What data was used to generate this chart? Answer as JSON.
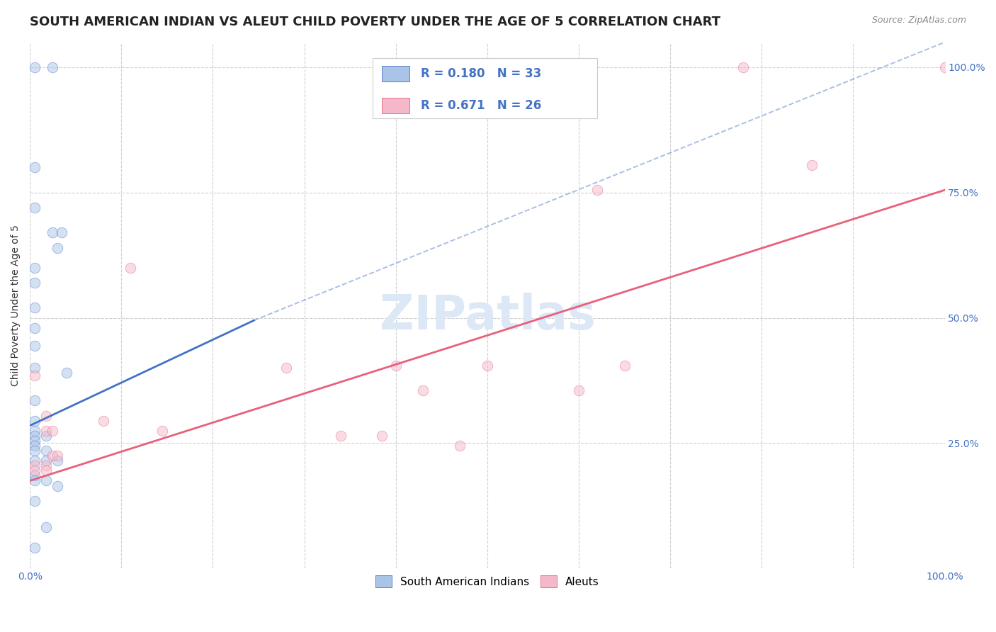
{
  "title": "SOUTH AMERICAN INDIAN VS ALEUT CHILD POVERTY UNDER THE AGE OF 5 CORRELATION CHART",
  "source": "Source: ZipAtlas.com",
  "ylabel": "Child Poverty Under the Age of 5",
  "watermark": "ZIPatlas",
  "legend_label1": "South American Indians",
  "legend_label2": "Aleuts",
  "r1": "0.180",
  "n1": "33",
  "r2": "0.671",
  "n2": "26",
  "color_blue": "#aac4e8",
  "color_pink": "#f5b8cb",
  "line_blue": "#4472c4",
  "line_pink": "#e8607a",
  "blue_points": [
    [
      0.005,
      1.0
    ],
    [
      0.025,
      1.0
    ],
    [
      0.005,
      0.8
    ],
    [
      0.005,
      0.72
    ],
    [
      0.025,
      0.67
    ],
    [
      0.035,
      0.67
    ],
    [
      0.03,
      0.64
    ],
    [
      0.005,
      0.6
    ],
    [
      0.005,
      0.57
    ],
    [
      0.005,
      0.52
    ],
    [
      0.005,
      0.48
    ],
    [
      0.005,
      0.445
    ],
    [
      0.005,
      0.4
    ],
    [
      0.04,
      0.39
    ],
    [
      0.005,
      0.335
    ],
    [
      0.005,
      0.295
    ],
    [
      0.005,
      0.275
    ],
    [
      0.005,
      0.265
    ],
    [
      0.018,
      0.265
    ],
    [
      0.005,
      0.255
    ],
    [
      0.005,
      0.245
    ],
    [
      0.005,
      0.235
    ],
    [
      0.018,
      0.235
    ],
    [
      0.005,
      0.215
    ],
    [
      0.018,
      0.215
    ],
    [
      0.03,
      0.215
    ],
    [
      0.005,
      0.185
    ],
    [
      0.005,
      0.175
    ],
    [
      0.018,
      0.175
    ],
    [
      0.03,
      0.165
    ],
    [
      0.005,
      0.135
    ],
    [
      0.018,
      0.082
    ],
    [
      0.005,
      0.042
    ]
  ],
  "pink_points": [
    [
      0.005,
      0.385
    ],
    [
      0.018,
      0.305
    ],
    [
      0.018,
      0.275
    ],
    [
      0.025,
      0.275
    ],
    [
      0.025,
      0.225
    ],
    [
      0.03,
      0.225
    ],
    [
      0.005,
      0.205
    ],
    [
      0.018,
      0.205
    ],
    [
      0.005,
      0.195
    ],
    [
      0.018,
      0.195
    ],
    [
      0.08,
      0.295
    ],
    [
      0.11,
      0.6
    ],
    [
      0.145,
      0.275
    ],
    [
      0.28,
      0.4
    ],
    [
      0.34,
      0.265
    ],
    [
      0.385,
      0.265
    ],
    [
      0.4,
      0.405
    ],
    [
      0.43,
      0.355
    ],
    [
      0.47,
      0.245
    ],
    [
      0.5,
      0.405
    ],
    [
      0.6,
      0.355
    ],
    [
      0.62,
      0.755
    ],
    [
      0.65,
      0.405
    ],
    [
      0.78,
      1.0
    ],
    [
      0.855,
      0.805
    ],
    [
      1.0,
      1.0
    ]
  ],
  "blue_solid_line": [
    [
      0.0,
      0.285
    ],
    [
      0.245,
      0.495
    ]
  ],
  "blue_dashed_line": [
    [
      0.245,
      0.495
    ],
    [
      1.0,
      1.05
    ]
  ],
  "pink_line": [
    [
      0.0,
      0.175
    ],
    [
      1.0,
      0.755
    ]
  ],
  "xlim": [
    0.0,
    1.0
  ],
  "ylim": [
    0.0,
    1.05
  ],
  "grid_color": "#d0d0d0",
  "background_color": "#ffffff",
  "title_fontsize": 13,
  "axis_label_fontsize": 10,
  "tick_fontsize": 10,
  "watermark_fontsize": 48,
  "watermark_color": "#dce8f5",
  "point_size": 110,
  "point_alpha": 0.5,
  "tick_color": "#4472c4",
  "legend_r_color": "#4472c4"
}
